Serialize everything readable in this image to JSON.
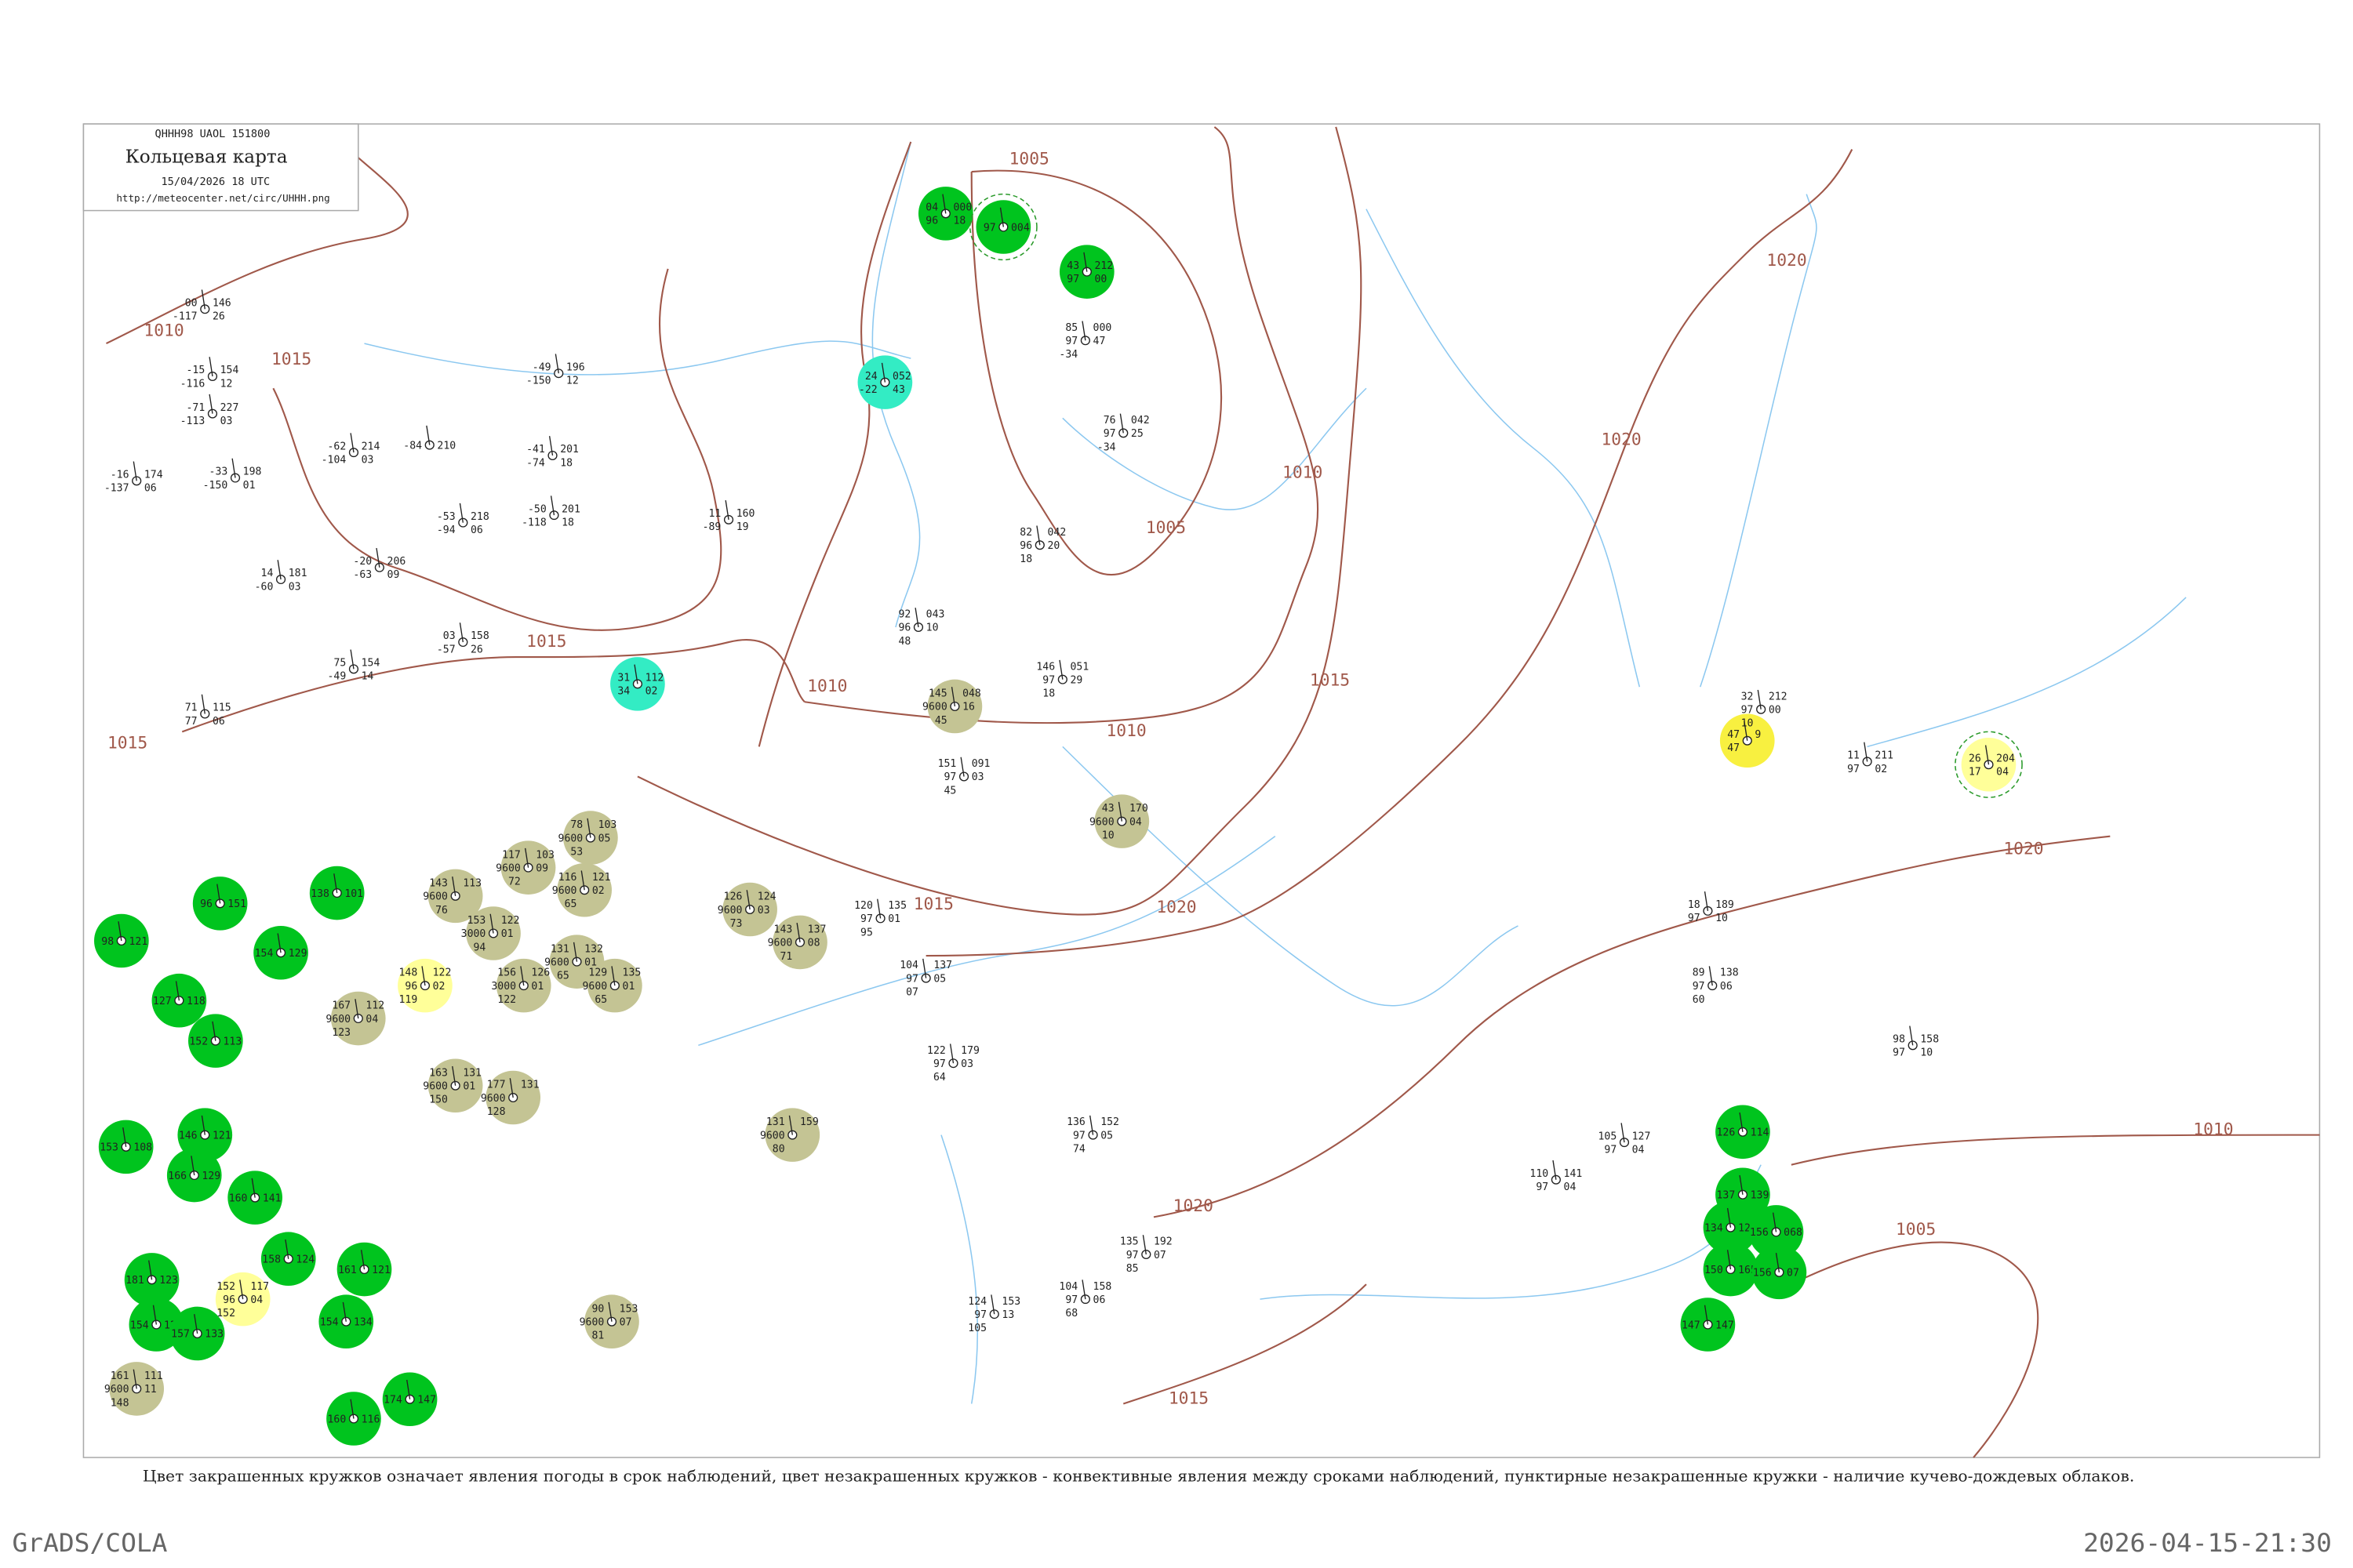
{
  "header": {
    "code": "QHHH98  UAOL  151800",
    "title": "Кольцевая карта",
    "date": "15/04/2026 18 UTC",
    "url": "http://meteocenter.net/circ/UHHH.png"
  },
  "isobar_labels": [
    "1010",
    "1015",
    "1005",
    "1015",
    "1010",
    "1010",
    "1020",
    "1015",
    "1010",
    "1005",
    "1020",
    "1020",
    "1020",
    "1010",
    "1005",
    "1020",
    "1015",
    "1015",
    "1015"
  ],
  "stations": [
    {
      "left": [
        "00",
        "-117"
      ],
      "right": [
        "146",
        "26"
      ]
    },
    {
      "left": [
        "-15",
        "-116"
      ],
      "right": [
        "154",
        "12"
      ]
    },
    {
      "left": [
        "-71",
        "-113"
      ],
      "right": [
        "227",
        "03"
      ]
    },
    {
      "left": [
        "-16",
        "-137"
      ],
      "right": [
        "174",
        "06"
      ]
    },
    {
      "left": [
        "-33",
        "-150"
      ],
      "right": [
        "198",
        "01"
      ]
    },
    {
      "left": [
        "14",
        "-60"
      ],
      "right": [
        "181",
        "03"
      ]
    },
    {
      "left": [
        "-62",
        "-104"
      ],
      "right": [
        "214",
        "03"
      ]
    },
    {
      "left": [
        "-84"
      ],
      "right": [
        "210"
      ]
    },
    {
      "left": [
        "-20",
        "-63"
      ],
      "right": [
        "206",
        "09"
      ]
    },
    {
      "left": [
        "-49",
        "-150"
      ],
      "right": [
        "196",
        "12"
      ]
    },
    {
      "left": [
        "-41",
        "-74"
      ],
      "right": [
        "201",
        "18"
      ]
    },
    {
      "left": [
        "-50",
        "-118"
      ],
      "right": [
        "201",
        "18"
      ]
    },
    {
      "left": [
        "-53",
        "-94"
      ],
      "right": [
        "218",
        "06"
      ]
    },
    {
      "left": [
        "03",
        "-57"
      ],
      "right": [
        "158",
        "26"
      ]
    },
    {
      "left": [
        "75",
        "-49"
      ],
      "right": [
        "154",
        "14"
      ]
    },
    {
      "left": [
        "71",
        "77"
      ],
      "right": [
        "115",
        "06"
      ]
    },
    {
      "left": [
        "11",
        "-89"
      ],
      "right": [
        "160",
        "19"
      ]
    },
    {
      "left": [
        "04",
        "96"
      ],
      "right": [
        "000",
        "18"
      ],
      "color": "#00c41e"
    },
    {
      "left": [
        "97"
      ],
      "right": [
        "004"
      ],
      "color": "#00c41e",
      "dashed": true
    },
    {
      "left": [
        "43",
        "97"
      ],
      "right": [
        "212",
        "00"
      ],
      "color": "#00c41e"
    },
    {
      "left": [
        "24",
        "-22"
      ],
      "right": [
        "052",
        "43"
      ],
      "color": "#33ecc4"
    },
    {
      "left": [
        "31",
        "34"
      ],
      "right": [
        "112",
        "02"
      ],
      "color": "#33ecc4"
    },
    {
      "left": [
        "145",
        "9600",
        "45"
      ],
      "right": [
        "048",
        "16"
      ],
      "color": "#c4c494"
    },
    {
      "left": [
        "43",
        "9600",
        "10"
      ],
      "right": [
        "170",
        "04"
      ],
      "color": "#c4c494"
    },
    {
      "left": [
        "78",
        "9600",
        "53"
      ],
      "right": [
        "103",
        "05"
      ],
      "color": "#c4c494"
    },
    {
      "left": [
        "117",
        "9600",
        "72"
      ],
      "right": [
        "103",
        "09"
      ],
      "color": "#c4c494"
    },
    {
      "left": [
        "143",
        "9600",
        "76"
      ],
      "right": [
        "113"
      ],
      "color": "#c4c494"
    },
    {
      "left": [
        "116",
        "9600",
        "65"
      ],
      "right": [
        "121",
        "02"
      ],
      "color": "#c4c494"
    },
    {
      "left": [
        "153",
        "3000",
        "94"
      ],
      "right": [
        "122",
        "01"
      ],
      "color": "#c4c494"
    },
    {
      "left": [
        "126",
        "9600",
        "73"
      ],
      "right": [
        "124",
        "03"
      ],
      "color": "#c4c494"
    },
    {
      "left": [
        "143",
        "9600",
        "71"
      ],
      "right": [
        "137",
        "08"
      ],
      "color": "#c4c494"
    },
    {
      "left": [
        "131",
        "9600",
        "65"
      ],
      "right": [
        "132",
        "01"
      ],
      "color": "#c4c494"
    },
    {
      "left": [
        "156",
        "3000",
        "122"
      ],
      "right": [
        "126",
        "01"
      ],
      "color": "#c4c494"
    },
    {
      "left": [
        "129",
        "9600",
        "65"
      ],
      "right": [
        "135",
        "01"
      ],
      "color": "#c4c494"
    },
    {
      "left": [
        "167",
        "9600",
        "123"
      ],
      "right": [
        "112",
        "04"
      ],
      "color": "#c4c494"
    },
    {
      "left": [
        "148",
        "96",
        "119"
      ],
      "right": [
        "122",
        "02"
      ],
      "color": "#ffff99"
    },
    {
      "left": [
        "163",
        "9600",
        "150"
      ],
      "right": [
        "131",
        "01"
      ],
      "color": "#c4c494"
    },
    {
      "left": [
        "177",
        "9600",
        "128"
      ],
      "right": [
        "131"
      ],
      "color": "#c4c494"
    },
    {
      "left": [
        "131",
        "9600",
        "80"
      ],
      "right": [
        "159"
      ],
      "color": "#c4c494"
    },
    {
      "left": [
        "90",
        "9600",
        "81"
      ],
      "right": [
        "153",
        "07"
      ],
      "color": "#c4c494"
    },
    {
      "left": [
        "161",
        "9600",
        "148"
      ],
      "right": [
        "111",
        "11"
      ],
      "color": "#c4c494"
    },
    {
      "left": [
        "152",
        "96",
        "152"
      ],
      "right": [
        "117",
        "04"
      ],
      "color": "#ffff99"
    },
    {
      "left": [
        "98"
      ],
      "right": [
        "121"
      ],
      "color": "#00c41e"
    },
    {
      "left": [
        "96"
      ],
      "right": [
        "151"
      ],
      "color": "#00c41e"
    },
    {
      "left": [
        "154"
      ],
      "right": [
        "129"
      ],
      "color": "#00c41e"
    },
    {
      "left": [
        "138"
      ],
      "right": [
        "101"
      ],
      "color": "#00c41e"
    },
    {
      "left": [
        "127"
      ],
      "right": [
        "118"
      ],
      "color": "#00c41e"
    },
    {
      "left": [
        "152"
      ],
      "right": [
        "113"
      ],
      "color": "#00c41e"
    },
    {
      "left": [
        "153"
      ],
      "right": [
        "108"
      ],
      "color": "#00c41e"
    },
    {
      "left": [
        "146"
      ],
      "right": [
        "121"
      ],
      "color": "#00c41e"
    },
    {
      "left": [
        "166"
      ],
      "right": [
        "129"
      ],
      "color": "#00c41e"
    },
    {
      "left": [
        "160"
      ],
      "right": [
        "141"
      ],
      "color": "#00c41e"
    },
    {
      "left": [
        "158"
      ],
      "right": [
        "124"
      ],
      "color": "#00c41e"
    },
    {
      "left": [
        "161"
      ],
      "right": [
        "121"
      ],
      "color": "#00c41e"
    },
    {
      "left": [
        "181"
      ],
      "right": [
        "123"
      ],
      "color": "#00c41e"
    },
    {
      "left": [
        "154"
      ],
      "right": [
        "129"
      ],
      "color": "#00c41e"
    },
    {
      "left": [
        "157"
      ],
      "right": [
        "133"
      ],
      "color": "#00c41e"
    },
    {
      "left": [
        "154"
      ],
      "right": [
        "134"
      ],
      "color": "#00c41e"
    },
    {
      "left": [
        "174"
      ],
      "right": [
        "147"
      ],
      "color": "#00c41e"
    },
    {
      "left": [
        "160"
      ],
      "right": [
        "116"
      ],
      "color": "#00c41e"
    },
    {
      "left": [
        "126"
      ],
      "right": [
        "114"
      ],
      "color": "#00c41e"
    },
    {
      "left": [
        "137"
      ],
      "right": [
        "139"
      ],
      "color": "#00c41e"
    },
    {
      "left": [
        "134"
      ],
      "right": [
        "127"
      ],
      "color": "#00c41e"
    },
    {
      "left": [
        "156"
      ],
      "right": [
        "068"
      ],
      "color": "#00c41e"
    },
    {
      "left": [
        "150"
      ],
      "right": [
        "165"
      ],
      "color": "#00c41e"
    },
    {
      "left": [
        "156"
      ],
      "right": [
        "07"
      ],
      "color": "#00c41e"
    },
    {
      "left": [
        "147"
      ],
      "right": [
        "147"
      ],
      "color": "#00c41e"
    },
    {
      "left": [
        "47",
        "47"
      ],
      "right": [
        "9"
      ],
      "color": "#f8f040"
    },
    {
      "left": [
        "26",
        "17"
      ],
      "right": [
        "204",
        "04"
      ],
      "color": "#ffff99",
      "dashed": true
    },
    {
      "left": [
        "32",
        "97",
        "10"
      ],
      "right": [
        "212",
        "00"
      ]
    },
    {
      "left": [
        "11",
        "97"
      ],
      "right": [
        "211",
        "02"
      ]
    },
    {
      "left": [
        "18",
        "97"
      ],
      "right": [
        "189",
        "10"
      ]
    },
    {
      "left": [
        "110",
        "97"
      ],
      "right": [
        "141",
        "04"
      ]
    },
    {
      "left": [
        "105",
        "97"
      ],
      "right": [
        "127",
        "04"
      ]
    },
    {
      "left": [
        "98",
        "97"
      ],
      "right": [
        "158",
        "10"
      ]
    },
    {
      "left": [
        "89",
        "97",
        "60"
      ],
      "right": [
        "138",
        "06"
      ]
    },
    {
      "left": [
        "85",
        "97",
        "-34"
      ],
      "right": [
        "000",
        "47"
      ]
    },
    {
      "left": [
        "76",
        "97",
        "-34"
      ],
      "right": [
        "042",
        "25"
      ]
    },
    {
      "left": [
        "82",
        "96",
        "18"
      ],
      "right": [
        "042",
        "20"
      ]
    },
    {
      "left": [
        "92",
        "96",
        "48"
      ],
      "right": [
        "043",
        "10"
      ]
    },
    {
      "left": [
        "146",
        "97",
        "18"
      ],
      "right": [
        "051",
        "29"
      ]
    },
    {
      "left": [
        "151",
        "97",
        "45"
      ],
      "right": [
        "091",
        "03"
      ]
    },
    {
      "left": [
        "120",
        "97",
        "95"
      ],
      "right": [
        "135",
        "01"
      ]
    },
    {
      "left": [
        "104",
        "97",
        "07"
      ],
      "right": [
        "137",
        "05"
      ]
    },
    {
      "left": [
        "122",
        "97",
        "64"
      ],
      "right": [
        "179",
        "03"
      ]
    },
    {
      "left": [
        "136",
        "97",
        "74"
      ],
      "right": [
        "152",
        "05"
      ]
    },
    {
      "left": [
        "135",
        "97",
        "85"
      ],
      "right": [
        "192",
        "07"
      ]
    },
    {
      "left": [
        "104",
        "97",
        "68"
      ],
      "right": [
        "158",
        "06"
      ]
    },
    {
      "left": [
        "124",
        "97",
        "105"
      ],
      "right": [
        "153",
        "13"
      ]
    }
  ],
  "caption": "Цвет закрашенных кружков означает явления погоды в срок наблюдений, цвет незакрашенных кружков - конвективные явления между сроками наблюдений, пунктирные незакрашенные кружки - наличие кучево-дождевых облаков.",
  "footer": {
    "left": "GrADS/COLA",
    "right": "2026-04-15-21:30"
  }
}
